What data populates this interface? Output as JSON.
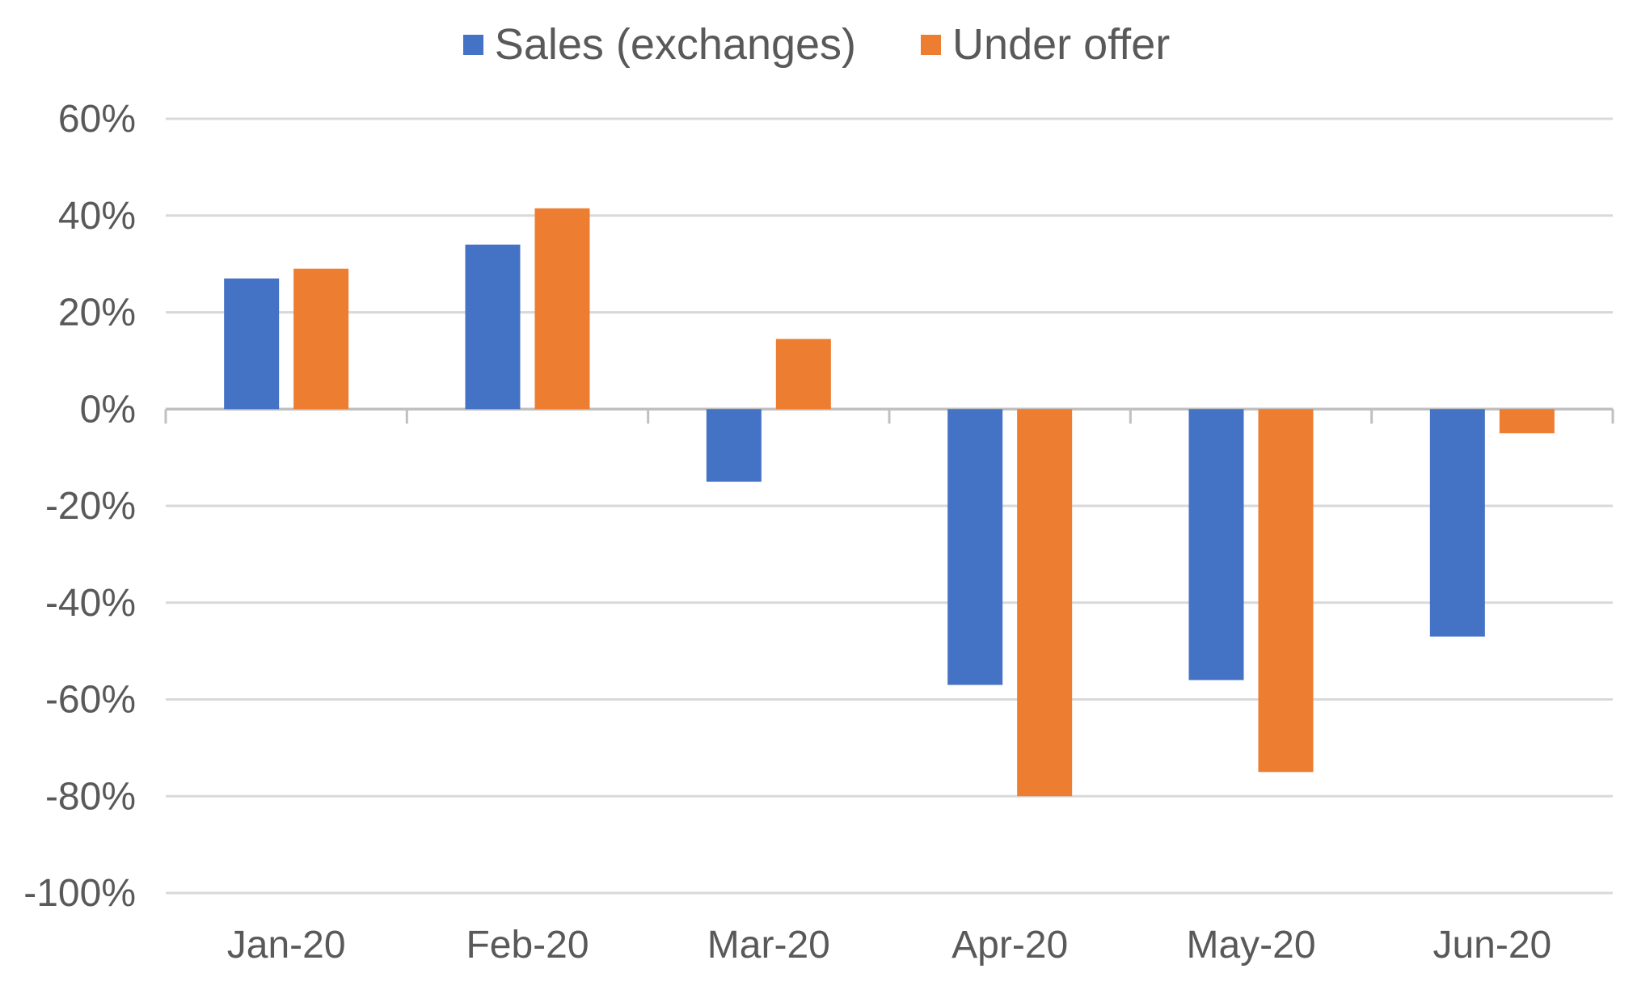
{
  "chart_data": {
    "type": "bar",
    "categories": [
      "Jan-20",
      "Feb-20",
      "Mar-20",
      "Apr-20",
      "May-20",
      "Jun-20"
    ],
    "series": [
      {
        "name": "Sales (exchanges)",
        "color": "#4472C4",
        "values": [
          27,
          34,
          -15,
          -57,
          -56,
          -47
        ]
      },
      {
        "name": "Under offer",
        "color": "#ED7D31",
        "values": [
          29,
          41.5,
          14.5,
          -80,
          -75,
          -5
        ]
      }
    ],
    "y_axis": {
      "min": -100,
      "max": 60,
      "step": 20,
      "tick_labels": [
        "60%",
        "40%",
        "20%",
        "0%",
        "-20%",
        "-40%",
        "-60%",
        "-80%",
        "-100%"
      ],
      "format": "percent"
    },
    "grid": true,
    "legend_position": "top-center",
    "colors": {
      "gridline": "#D9D9D9",
      "axis_line": "#C0C0C0",
      "tick_text": "#595959",
      "background": "#FFFFFF"
    }
  }
}
